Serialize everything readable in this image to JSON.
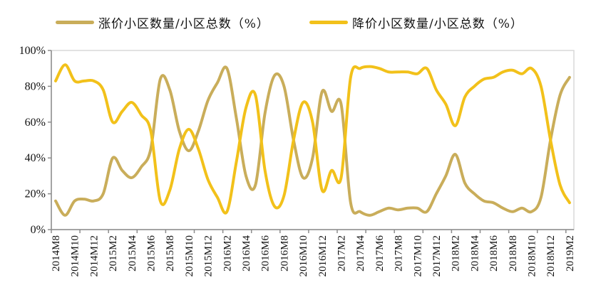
{
  "legend": {
    "items": [
      {
        "label": "涨价小区数量/小区总数（%）",
        "color": "#C9AD5A"
      },
      {
        "label": "降价小区数量/小区总数（%）",
        "color": "#F2C11A"
      }
    ]
  },
  "chart_data": {
    "type": "line",
    "title": "",
    "xlabel": "",
    "ylabel": "",
    "ylim": [
      0,
      100
    ],
    "y_ticks": [
      "0%",
      "20%",
      "40%",
      "60%",
      "80%",
      "100%"
    ],
    "x_tick_labels": [
      "2014M8",
      "2014M10",
      "2014M12",
      "2015M2",
      "2015M4",
      "2015M6",
      "2015M8",
      "2015M10",
      "2015M12",
      "2016M2",
      "2016M4",
      "2016M6",
      "2016M8",
      "2016M10",
      "2016M12",
      "2017M2",
      "2017M4",
      "2017M6",
      "2017M8",
      "2017M10",
      "2017M12",
      "2018M2",
      "2018M4",
      "2018M6",
      "2018M8",
      "2018M10",
      "2018M12",
      "2019M2"
    ],
    "x": [
      "2014M8",
      "2014M9",
      "2014M10",
      "2014M11",
      "2014M12",
      "2015M1",
      "2015M2",
      "2015M3",
      "2015M4",
      "2015M5",
      "2015M6",
      "2015M7",
      "2015M8",
      "2015M9",
      "2015M10",
      "2015M11",
      "2015M12",
      "2016M1",
      "2016M2",
      "2016M3",
      "2016M4",
      "2016M5",
      "2016M6",
      "2016M7",
      "2016M8",
      "2016M9",
      "2016M10",
      "2016M11",
      "2016M12",
      "2017M1",
      "2017M2",
      "2017M3",
      "2017M4",
      "2017M5",
      "2017M6",
      "2017M7",
      "2017M8",
      "2017M9",
      "2017M10",
      "2017M11",
      "2017M12",
      "2018M1",
      "2018M2",
      "2018M3",
      "2018M4",
      "2018M5",
      "2018M6",
      "2018M7",
      "2018M8",
      "2018M9",
      "2018M10",
      "2018M11",
      "2018M12",
      "2019M1",
      "2019M2"
    ],
    "series": [
      {
        "name": "涨价小区数量/小区总数（%）",
        "color": "#C9AD5A",
        "values": [
          16,
          8,
          16,
          17,
          16,
          20,
          40,
          33,
          29,
          35,
          45,
          84,
          78,
          55,
          44,
          55,
          72,
          82,
          90,
          62,
          30,
          25,
          65,
          86,
          80,
          50,
          29,
          40,
          77,
          66,
          70,
          15,
          10,
          8,
          10,
          12,
          11,
          12,
          12,
          10,
          20,
          30,
          42,
          26,
          20,
          16,
          15,
          12,
          10,
          12,
          10,
          18,
          50,
          75,
          85
        ]
      },
      {
        "name": "降价小区数量/小区总数（%）",
        "color": "#F2C11A",
        "values": [
          83,
          92,
          83,
          83,
          83,
          78,
          60,
          66,
          71,
          64,
          55,
          16,
          22,
          45,
          56,
          45,
          28,
          18,
          10,
          38,
          68,
          75,
          33,
          13,
          19,
          50,
          71,
          60,
          22,
          33,
          29,
          85,
          90,
          91,
          90,
          88,
          88,
          88,
          87,
          90,
          78,
          70,
          58,
          74,
          80,
          84,
          85,
          88,
          89,
          87,
          90,
          80,
          50,
          25,
          15
        ]
      }
    ],
    "grid": false,
    "legend_position": "top"
  }
}
